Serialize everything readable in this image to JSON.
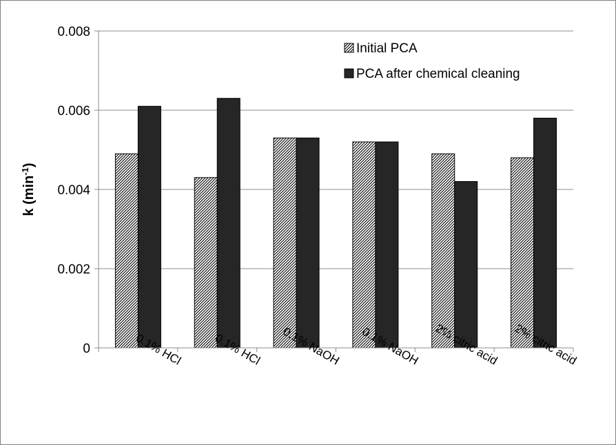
{
  "chart_data": {
    "type": "bar",
    "categories": [
      "0.1% HCl",
      "0.1% HCl",
      "0.1% NaOH",
      "0.1% NaOH",
      "2% citric acid",
      "2% citric acid"
    ],
    "series": [
      {
        "name": "Initial PCA",
        "values": [
          0.0049,
          0.0043,
          0.0053,
          0.0052,
          0.0049,
          0.0048
        ],
        "pattern": "diagonal-hatch"
      },
      {
        "name": "PCA after chemical cleaning",
        "values": [
          0.0061,
          0.0063,
          0.0053,
          0.0052,
          0.0042,
          0.0058
        ],
        "color": "#262626"
      }
    ],
    "title": "",
    "xlabel": "",
    "ylabel": "k (min",
    "ylabel_sup": "-1",
    "ylabel_suffix": ")",
    "ylim": [
      0,
      0.008
    ],
    "yticks": [
      "0",
      "0.002",
      "0.004",
      "0.006",
      "0.008"
    ],
    "grid": true,
    "legend_position": "top-right"
  }
}
